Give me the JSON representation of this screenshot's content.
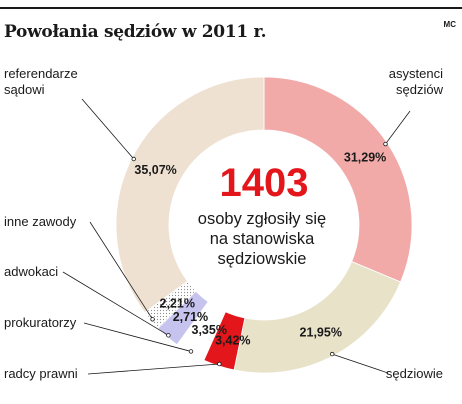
{
  "title": "Powołania sędziów w 2011 r.",
  "credit": "MC",
  "chart_data": {
    "type": "pie",
    "title": "Powołania sędziów w 2011 r.",
    "center_value": "1403",
    "center_text": [
      "osoby zgłosiły się",
      "na stanowiska",
      "sędziowskie"
    ],
    "slices": [
      {
        "name": "asystenci sędziów",
        "label_lines": [
          "asystenci",
          "sędziów"
        ],
        "value": 31.29,
        "display": "31,29%",
        "color": "#f1aaa8"
      },
      {
        "name": "sędziowie",
        "label_lines": [
          "sędziowie"
        ],
        "value": 21.95,
        "display": "21,95%",
        "color": "#e8e2c9"
      },
      {
        "name": "radcy prawni",
        "label_lines": [
          "radcy prawni"
        ],
        "value": 3.42,
        "display": "3,42%",
        "color": "#e3161b"
      },
      {
        "name": "prokuratorzy",
        "label_lines": [
          "prokuratorzy"
        ],
        "value": 3.35,
        "display": "3,35%",
        "color": "#ffffff"
      },
      {
        "name": "adwokaci",
        "label_lines": [
          "adwokaci"
        ],
        "value": 2.71,
        "display": "2,71%",
        "color": "#c6c3ef"
      },
      {
        "name": "inne zawody",
        "label_lines": [
          "inne zawody"
        ],
        "value": 2.21,
        "display": "2,21%",
        "color": "#ffffff"
      },
      {
        "name": "referendarze sądowi",
        "label_lines": [
          "referendarze",
          "sądowi"
        ],
        "value": 35.07,
        "display": "35,07%",
        "color": "#efe1d2"
      }
    ]
  }
}
